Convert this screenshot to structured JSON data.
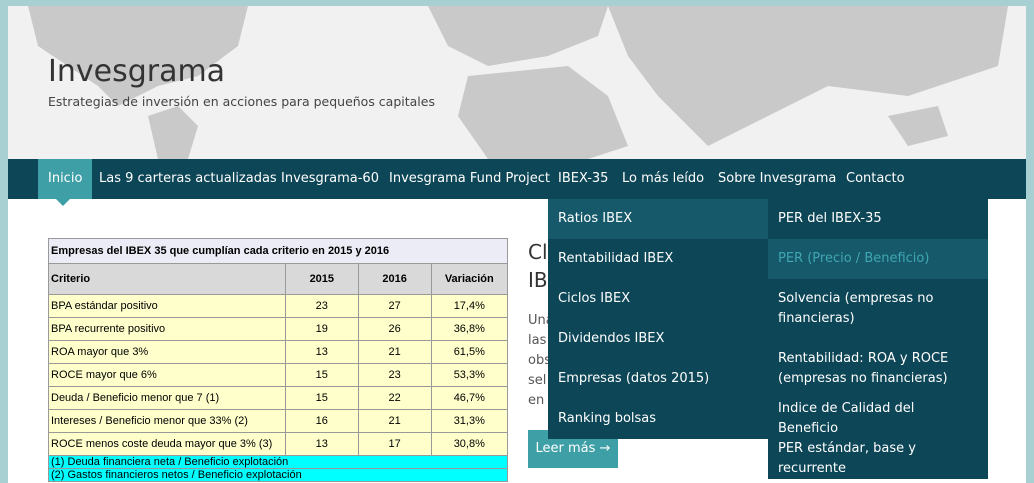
{
  "header": {
    "title": "Invesgrama",
    "tagline": "Estrategias de inversión en acciones para pequeños capitales"
  },
  "nav": {
    "items": [
      "Inicio",
      "Las 9 carteras actualizadas",
      "Invesgrama-60",
      "Invesgrama Fund Project",
      "IBEX-35",
      "Lo más leído",
      "Sobre Invesgrama",
      "Contacto"
    ]
  },
  "dropdown": {
    "level1": [
      "Ratios IBEX",
      "Rentabilidad IBEX",
      "Ciclos IBEX",
      "Dividendos IBEX",
      "Empresas (datos 2015)",
      "Ranking bolsas"
    ],
    "level2": [
      "PER del IBEX-35",
      "PER (Precio / Beneficio)",
      "Solvencia (empresas no financieras)",
      "Rentabilidad: ROA y ROCE (empresas no financieras)",
      "Indice de Calidad del Beneficio",
      "PER estándar, base y recurrente"
    ]
  },
  "table": {
    "caption": "Empresas del IBEX 35 que cumplían cada criterio en 2015 y 2016",
    "columns": [
      "Criterio",
      "2015",
      "2016",
      "Variación"
    ],
    "rows": [
      [
        "BPA estándar positivo",
        "23",
        "27",
        "17,4%"
      ],
      [
        "BPA recurrente positivo",
        "19",
        "26",
        "36,8%"
      ],
      [
        "ROA mayor que 3%",
        "13",
        "21",
        "61,5%"
      ],
      [
        "ROCE mayor que 6%",
        "15",
        "23",
        "53,3%"
      ],
      [
        "Deuda / Beneficio menor que 7 (1)",
        "15",
        "22",
        "46,7%"
      ],
      [
        "Intereses / Beneficio menor que 33% (2)",
        "16",
        "21",
        "31,3%"
      ],
      [
        "ROCE menos coste deuda mayor que 3% (3)",
        "13",
        "17",
        "30,8%"
      ]
    ],
    "footnotes": [
      "(1) Deuda financiera neta / Beneficio explotación",
      "(2) Gastos financieros netos / Beneficio explotación"
    ]
  },
  "post": {
    "title_lines": [
      "Cl",
      "IB"
    ],
    "excerpt_lines": [
      "Una",
      "las",
      "obs",
      "sel",
      "en I"
    ],
    "button": "Leer más →"
  }
}
